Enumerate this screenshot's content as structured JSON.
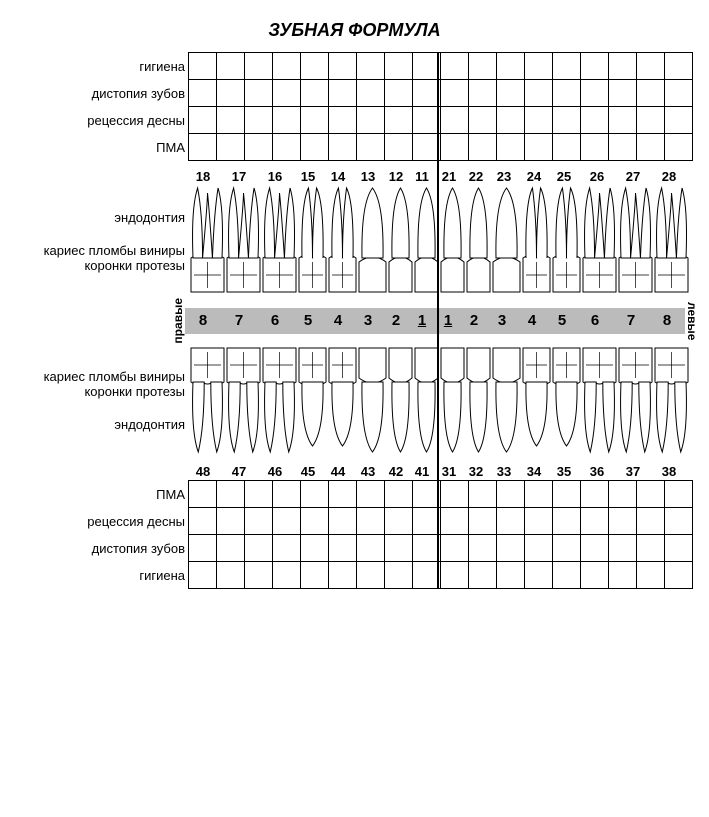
{
  "title": "ЗУБНАЯ ФОРМУЛА",
  "upperGridLabels": [
    "гигиена",
    "дистопия зубов",
    "рецессия десны",
    "ПМА"
  ],
  "lowerGridLabels": [
    "ПМА",
    "рецессия десны",
    "дистопия зубов",
    "гигиена"
  ],
  "upperToothNumbers": [
    "18",
    "17",
    "16",
    "15",
    "14",
    "13",
    "12",
    "11",
    "21",
    "22",
    "23",
    "24",
    "25",
    "26",
    "27",
    "28"
  ],
  "lowerToothNumbers": [
    "48",
    "47",
    "46",
    "45",
    "44",
    "43",
    "42",
    "41",
    "31",
    "32",
    "33",
    "34",
    "35",
    "36",
    "37",
    "38"
  ],
  "bandNumbers": [
    "8",
    "7",
    "6",
    "5",
    "4",
    "3",
    "2",
    "1",
    "1",
    "2",
    "3",
    "4",
    "5",
    "6",
    "7",
    "8"
  ],
  "toothWidths": [
    36,
    36,
    36,
    30,
    30,
    30,
    26,
    26,
    26,
    26,
    30,
    30,
    30,
    36,
    36,
    36
  ],
  "numberWidths": [
    36,
    36,
    36,
    30,
    30,
    30,
    26,
    26,
    28,
    26,
    30,
    30,
    30,
    36,
    36,
    36
  ],
  "sideRight": "правые",
  "sideLeft": "левые",
  "labelEndo": "эндодонтия",
  "labelCaries1": "кариес пломбы виниры",
  "labelCaries2": "коронки протезы",
  "gridCols": 18,
  "gridRows": 4,
  "gridRowHeight": 27,
  "gridColWidth": 28,
  "colors": {
    "band": "#bbbbbb",
    "line": "#000000",
    "bg": "#ffffff"
  }
}
